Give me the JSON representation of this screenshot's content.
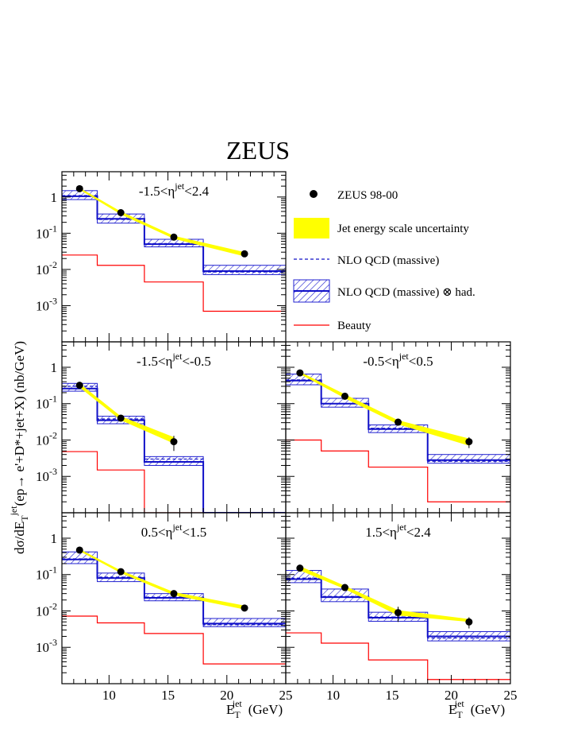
{
  "figure": {
    "title": "ZEUS",
    "ylabel_main": "dσ/dE",
    "ylabel_sub": "T",
    "ylabel_sup": "jet",
    "ylabel_rest": "(ep→ e'+D*+jet+X) (nb/GeV)",
    "xlabel_main": "E",
    "xlabel_sub": "T",
    "xlabel_sup": "jet",
    "xlabel_unit": "(GeV)"
  },
  "legend": {
    "data": "ZEUS 98-00",
    "jes": "Jet energy scale uncertainty",
    "nlo": "NLO QCD (massive)",
    "nlo_had": "NLO QCD (massive) ⊗ had.",
    "beauty": "Beauty"
  },
  "colors": {
    "data": "#000000",
    "jes": "#ffff00",
    "nlo": "#1010c8",
    "beauty": "#ff0000"
  },
  "chart_data": [
    {
      "type": "histogram",
      "panel": "top-left",
      "label_pre": "-1.5<η",
      "label_sup": "jet",
      "label_post": "<2.4",
      "xlim": [
        6,
        25
      ],
      "ylim": [
        0.0001,
        5
      ],
      "yscale": "log",
      "bins": [
        6,
        9,
        13,
        18,
        25
      ],
      "data_x": [
        7.5,
        11,
        15.5,
        21.5
      ],
      "data_y": [
        1.7,
        0.37,
        0.078,
        0.027
      ],
      "data_err": [
        0.15,
        0.03,
        0.008,
        0.004
      ],
      "jes_band": {
        "x": [
          7.5,
          11,
          15.5,
          21.5
        ],
        "lo": [
          1.6,
          0.33,
          0.07,
          0.023
        ],
        "hi": [
          1.8,
          0.4,
          0.085,
          0.03
        ]
      },
      "nlo": [
        1.1,
        0.24,
        0.052,
        0.0085
      ],
      "nlo_had": [
        1.05,
        0.25,
        0.05,
        0.009
      ],
      "band_lo": [
        0.85,
        0.19,
        0.042,
        0.0072
      ],
      "band_hi": [
        1.5,
        0.34,
        0.068,
        0.013
      ],
      "beauty": [
        0.025,
        0.013,
        0.0045,
        0.0007
      ]
    },
    {
      "type": "histogram",
      "panel": "middle-left",
      "label_pre": "-1.5<η",
      "label_sup": "jet",
      "label_post": "<-0.5",
      "xlim": [
        6,
        25
      ],
      "ylim": [
        0.0001,
        5
      ],
      "yscale": "log",
      "bins": [
        6,
        9,
        13,
        18,
        25
      ],
      "data_x": [
        7.5,
        11,
        15.5
      ],
      "data_y": [
        0.32,
        0.04,
        0.009
      ],
      "data_err": [
        0.04,
        0.006,
        0.004
      ],
      "jes_band": {
        "x": [
          7.5,
          11,
          15.5
        ],
        "lo": [
          0.28,
          0.035,
          0.008
        ],
        "hi": [
          0.36,
          0.045,
          0.012
        ]
      },
      "nlo": [
        0.3,
        0.038,
        0.003
      ],
      "nlo_had": [
        0.26,
        0.035,
        0.0025
      ],
      "band_lo": [
        0.22,
        0.028,
        0.002
      ],
      "band_hi": [
        0.36,
        0.045,
        0.0035
      ],
      "beauty": [
        0.0048,
        0.0015,
        0.0,
        0
      ]
    },
    {
      "type": "histogram",
      "panel": "middle-right",
      "label_pre": "-0.5<η",
      "label_sup": "jet",
      "label_post": "<0.5",
      "xlim": [
        6,
        25
      ],
      "ylim": [
        0.0001,
        5
      ],
      "yscale": "log",
      "bins": [
        6,
        9,
        13,
        18,
        25
      ],
      "data_x": [
        7.2,
        11,
        15.5,
        21.5
      ],
      "data_y": [
        0.7,
        0.16,
        0.031,
        0.009
      ],
      "data_err": [
        0.06,
        0.015,
        0.004,
        0.003
      ],
      "jes_band": {
        "x": [
          7.2,
          11,
          15.5,
          21.5
        ],
        "lo": [
          0.65,
          0.14,
          0.027,
          0.007
        ],
        "hi": [
          0.75,
          0.18,
          0.035,
          0.011
        ]
      },
      "nlo": [
        0.45,
        0.1,
        0.021,
        0.0026
      ],
      "nlo_had": [
        0.43,
        0.1,
        0.02,
        0.0028
      ],
      "band_lo": [
        0.33,
        0.08,
        0.016,
        0.0023
      ],
      "band_hi": [
        0.65,
        0.14,
        0.026,
        0.004
      ],
      "beauty": [
        0.01,
        0.005,
        0.0018,
        0.0002
      ]
    },
    {
      "type": "histogram",
      "panel": "bottom-left",
      "label_pre": "0.5<η",
      "label_sup": "jet",
      "label_post": "<1.5",
      "xlim": [
        6,
        25
      ],
      "ylim": [
        0.0001,
        5
      ],
      "yscale": "log",
      "bins": [
        6,
        9,
        13,
        18,
        25
      ],
      "data_x": [
        7.5,
        11,
        15.5,
        21.5
      ],
      "data_y": [
        0.47,
        0.12,
        0.03,
        0.012
      ],
      "data_err": [
        0.04,
        0.012,
        0.007,
        0.002
      ],
      "jes_band": {
        "x": [
          7.5,
          11,
          15.5,
          21.5
        ],
        "lo": [
          0.44,
          0.11,
          0.027,
          0.011
        ],
        "hi": [
          0.5,
          0.13,
          0.033,
          0.014
        ]
      },
      "nlo": [
        0.27,
        0.085,
        0.024,
        0.0042
      ],
      "nlo_had": [
        0.26,
        0.08,
        0.023,
        0.0045
      ],
      "band_lo": [
        0.2,
        0.064,
        0.019,
        0.0037
      ],
      "band_hi": [
        0.42,
        0.11,
        0.03,
        0.0062
      ],
      "beauty": [
        0.0072,
        0.0047,
        0.0024,
        0.00035
      ]
    },
    {
      "type": "histogram",
      "panel": "bottom-right",
      "label_pre": "1.5<η",
      "label_sup": "jet",
      "label_post": "<2.4",
      "xlim": [
        6,
        25
      ],
      "ylim": [
        0.0001,
        5
      ],
      "yscale": "log",
      "bins": [
        6,
        9,
        13,
        18,
        25
      ],
      "data_x": [
        7.2,
        11,
        15.5,
        21.5
      ],
      "data_y": [
        0.15,
        0.044,
        0.009,
        0.005
      ],
      "data_err": [
        0.015,
        0.005,
        0.004,
        0.0017
      ],
      "jes_band": {
        "x": [
          7.2,
          11,
          15.5,
          21.5
        ],
        "lo": [
          0.13,
          0.04,
          0.0075,
          0.005
        ],
        "hi": [
          0.17,
          0.049,
          0.0105,
          0.006
        ]
      },
      "nlo": [
        0.08,
        0.025,
        0.0068,
        0.0018
      ],
      "nlo_had": [
        0.075,
        0.024,
        0.0065,
        0.002
      ],
      "band_lo": [
        0.06,
        0.018,
        0.0052,
        0.0015
      ],
      "band_hi": [
        0.13,
        0.04,
        0.0092,
        0.0027
      ],
      "beauty": [
        0.0025,
        0.0013,
        0.00045,
        0.00013
      ]
    }
  ]
}
